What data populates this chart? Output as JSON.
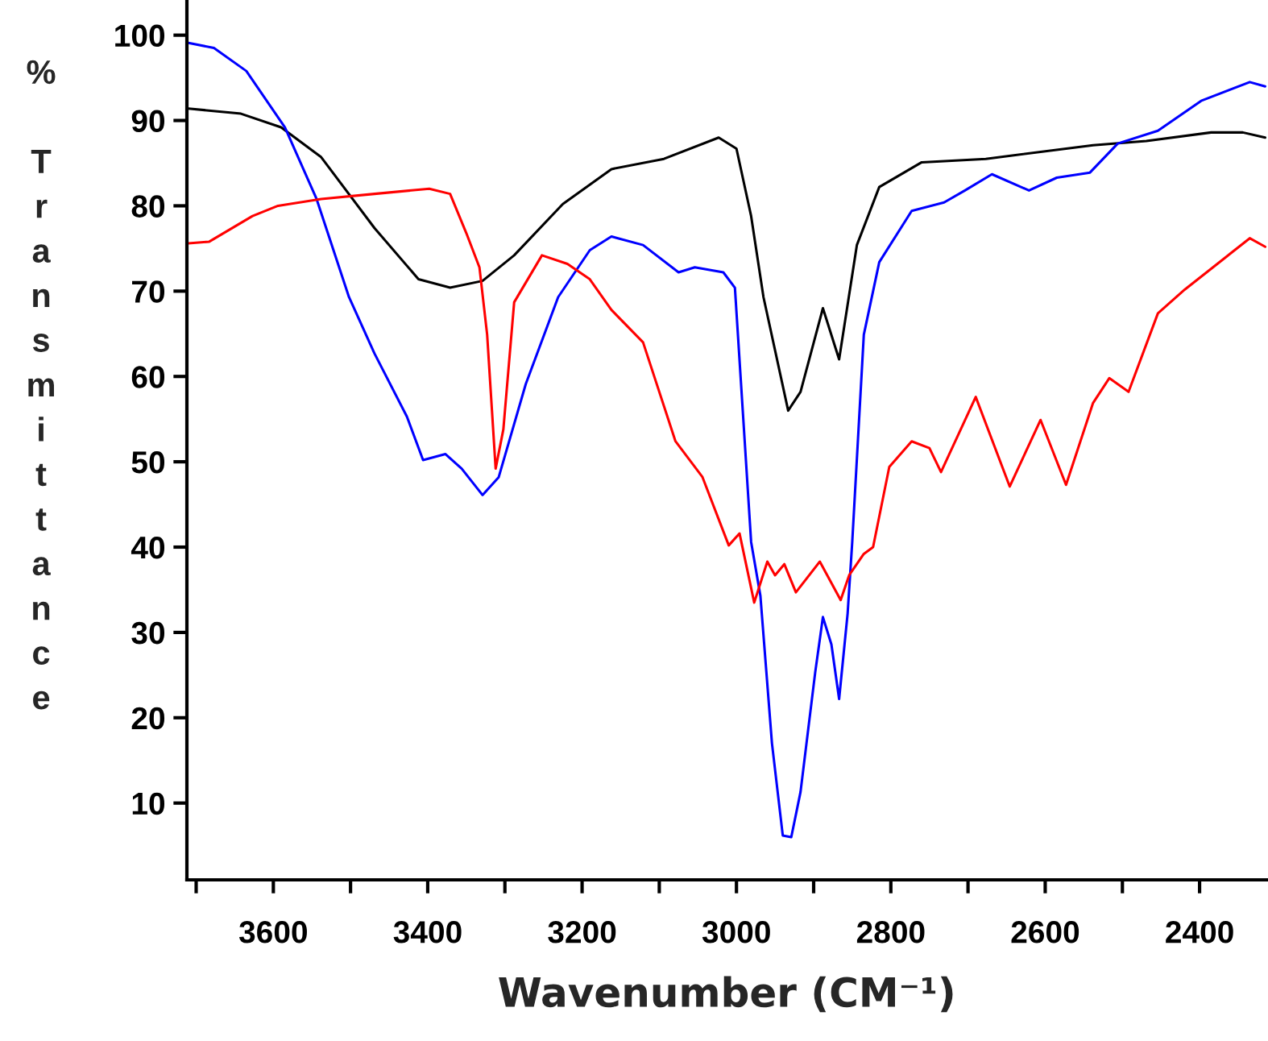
{
  "chart_data": {
    "type": "line",
    "xlabel": "Wavenumber (CM⁻¹)",
    "ylabel": "% Transmittance",
    "xlim": [
      3712,
      2313
    ],
    "ylim": [
      1,
      104
    ],
    "xticks": [
      {
        "value": 3700,
        "label": null
      },
      3600,
      {
        "value": 3500,
        "label": null
      },
      3400,
      {
        "value": 3300,
        "label": null
      },
      3200,
      {
        "value": 3100,
        "label": null
      },
      3000,
      {
        "value": 2900,
        "label": null
      },
      2800,
      {
        "value": 2700,
        "label": null
      },
      2600,
      {
        "value": 2500,
        "label": null
      },
      2400
    ],
    "yticks": [
      10,
      20,
      30,
      40,
      50,
      60,
      70,
      80,
      90,
      100
    ],
    "grid": false,
    "legend": false,
    "marker": "none",
    "line_style": "solid",
    "series": [
      {
        "color": "#000000",
        "x": [
          3710,
          3642,
          3590,
          3538,
          3469,
          3412,
          3371,
          3329,
          3288,
          3225,
          3162,
          3094,
          3023,
          3000,
          2981,
          2965,
          2933,
          2917,
          2888,
          2867,
          2844,
          2815,
          2760,
          2677,
          2573,
          2538,
          2469,
          2385,
          2344,
          2315
        ],
        "values": [
          91.4,
          90.8,
          89.2,
          85.7,
          77.4,
          71.4,
          70.4,
          71.2,
          74.2,
          80.2,
          84.3,
          85.5,
          88.0,
          86.7,
          78.8,
          69.3,
          56,
          58.2,
          68,
          62,
          75.4,
          82.2,
          85.1,
          85.5,
          86.7,
          87.1,
          87.6,
          88.6,
          88.6,
          88
        ]
      },
      {
        "color": "#0000ff",
        "x": [
          3710,
          3677,
          3635,
          3585,
          3544,
          3502,
          3469,
          3427,
          3406,
          3377,
          3356,
          3329,
          3308,
          3273,
          3231,
          3190,
          3162,
          3121,
          3075,
          3054,
          3017,
          3002,
          2981,
          2969,
          2954,
          2940,
          2929,
          2917,
          2898,
          2888,
          2877,
          2867,
          2856,
          2850,
          2835,
          2815,
          2773,
          2731,
          2704,
          2669,
          2621,
          2585,
          2542,
          2506,
          2454,
          2398,
          2335,
          2315
        ],
        "values": [
          99.1,
          98.5,
          95.8,
          89.2,
          80.8,
          69.3,
          62.7,
          55.3,
          50.2,
          50.9,
          49.2,
          46.1,
          48.2,
          59.1,
          69.3,
          74.8,
          76.4,
          75.4,
          72.2,
          72.8,
          72.2,
          70.4,
          40.6,
          34.3,
          17,
          6.2,
          6.0,
          11.3,
          25.3,
          31.8,
          28.6,
          22.2,
          32.2,
          40.6,
          64.9,
          73.4,
          79.4,
          80.4,
          81.8,
          83.7,
          81.8,
          83.3,
          83.9,
          87.3,
          88.8,
          92.3,
          94.5,
          94
        ]
      },
      {
        "color": "#ff0000",
        "x": [
          3710,
          3683,
          3627,
          3594,
          3538,
          3469,
          3398,
          3371,
          3350,
          3333,
          3323,
          3312,
          3302,
          3288,
          3252,
          3219,
          3190,
          3162,
          3121,
          3079,
          3044,
          3010,
          2996,
          2977,
          2960,
          2950,
          2938,
          2923,
          2892,
          2865,
          2854,
          2835,
          2823,
          2802,
          2773,
          2750,
          2735,
          2690,
          2646,
          2606,
          2573,
          2538,
          2517,
          2492,
          2454,
          2419,
          2377,
          2335,
          2315
        ],
        "values": [
          75.6,
          75.8,
          78.8,
          80,
          80.8,
          81.4,
          82,
          81.4,
          76.8,
          72.8,
          64.9,
          49.2,
          53.8,
          68.7,
          74.2,
          73.2,
          71.4,
          67.8,
          64,
          52.4,
          48.2,
          40.2,
          41.6,
          33.5,
          38.3,
          36.7,
          38,
          34.7,
          38.3,
          33.8,
          36.7,
          39.2,
          40,
          49.4,
          52.4,
          51.6,
          48.8,
          57.6,
          47.1,
          54.9,
          47.3,
          56.9,
          59.8,
          58.2,
          67.4,
          70.2,
          73.2,
          76.2,
          75.2
        ]
      }
    ]
  }
}
